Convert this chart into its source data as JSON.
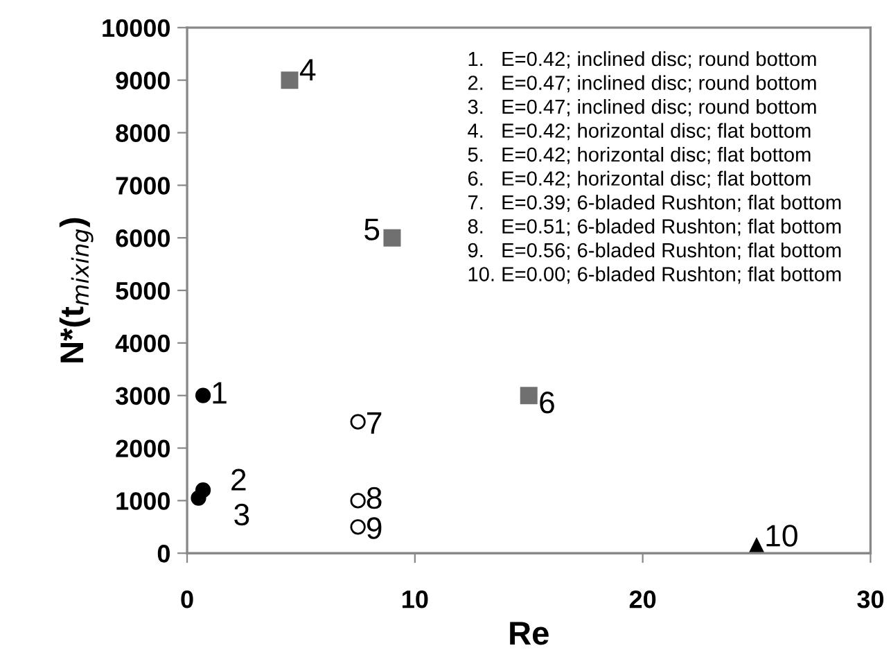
{
  "chart_data": {
    "type": "scatter",
    "xlabel": "Re",
    "ylabel": "N*(t$_{mixing}$)",
    "xlim": [
      0,
      30
    ],
    "xticks": [
      0,
      10,
      20,
      30
    ],
    "ylim": [
      0,
      10000
    ],
    "yticks": [
      0,
      1000,
      2000,
      3000,
      4000,
      5000,
      6000,
      7000,
      8000,
      9000,
      10000
    ],
    "grid": false,
    "legend": false,
    "series": [
      {
        "color": "#000000",
        "marker": "circle",
        "x": [
          0.7,
          0.7,
          0.5
        ],
        "values": [
          3000,
          1200,
          1050
        ]
      },
      {
        "color": "#707070",
        "marker": "square",
        "x": [
          4.5,
          9.0,
          15.0
        ],
        "values": [
          9000,
          6000,
          3000
        ]
      },
      {
        "color": "#ffffff",
        "marker": "circle",
        "x": [
          7.5,
          7.5,
          7.5
        ],
        "values": [
          2500,
          1000,
          500
        ]
      },
      {
        "color": "#000000",
        "marker": "triangle",
        "x": [
          25.0
        ],
        "values": [
          100
        ]
      }
    ],
    "annotations": [
      {
        "text": "1",
        "x": 0.7,
        "y": 3000
      },
      {
        "text": "2",
        "x": 0.7,
        "y": 1200
      },
      {
        "text": "3",
        "x": 0.5,
        "y": 1050
      },
      {
        "text": "4",
        "x": 4.5,
        "y": 9000
      },
      {
        "text": "5",
        "x": 9.0,
        "y": 6000
      },
      {
        "text": "6",
        "x": 15.0,
        "y": 3000
      },
      {
        "text": "7",
        "x": 7.5,
        "y": 2500
      },
      {
        "text": "8",
        "x": 7.5,
        "y": 1000
      },
      {
        "text": "9",
        "x": 7.5,
        "y": 500
      },
      {
        "text": "10",
        "x": 25.0,
        "y": 100
      },
      "1.   E=0.42; inclined disc; round bottom",
      "2.   E=0.47; inclined disc; round bottom",
      "3.   E=0.47; inclined disc; round bottom",
      "4.   E=0.42; horizontal disc; flat bottom",
      "5.   E=0.42; horizontal disc; flat bottom",
      "6.   E=0.42; horizontal disc; flat bottom",
      "7.   E=0.39; 6-bladed Rushton; flat bottom",
      "8.   E=0.51; 6-bladed Rushton; flat bottom",
      "9.   E=0.56; 6-bladed Rushton; flat bottom",
      "10. E=0.00; 6-bladed Rushton; flat bottom"
    ]
  }
}
